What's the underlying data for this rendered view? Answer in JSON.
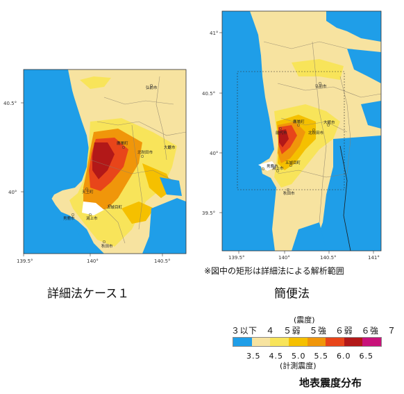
{
  "left_map": {
    "caption": "詳細法ケース１",
    "x_ticks": [
      "139.5°",
      "140°",
      "140.5°"
    ],
    "y_ticks": [
      "40.5°",
      "40°"
    ],
    "cities": [
      "弘前市",
      "鷹巣町",
      "北秋田市",
      "大館市",
      "五城目町",
      "男鹿市",
      "秋田市",
      "潟上市",
      "天王町"
    ]
  },
  "right_map": {
    "caption": "簡便法",
    "x_ticks": [
      "139.5°",
      "140°",
      "140.5°",
      "141°"
    ],
    "y_ticks": [
      "41°",
      "40.5°",
      "40°",
      "39.5°"
    ],
    "cities": [
      "弘前市",
      "鷹巣町",
      "北秋田市",
      "大館市",
      "能代市",
      "男鹿市",
      "五城目町",
      "秋田市",
      "潟上市"
    ],
    "note": "※図中の矩形は詳細法による解析範囲"
  },
  "legend": {
    "header": "(震度)",
    "intensity_labels": "３以下　４　５弱　５強　６弱　６強　７",
    "value_labels": "3.5　4.5　5.0　5.5　6.0　6.5",
    "footer": "(計測震度)",
    "colors": [
      "#1f9ee8",
      "#f7e3a0",
      "#f8e45a",
      "#f5c000",
      "#f0960a",
      "#e8451a",
      "#b21818",
      "#c8127a"
    ]
  },
  "title": "地表震度分布"
}
